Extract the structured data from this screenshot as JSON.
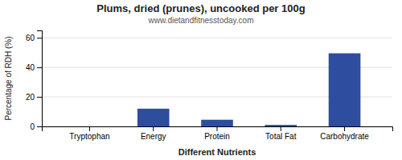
{
  "chart_data": {
    "type": "bar",
    "title": "Plums, dried (prunes), uncooked per 100g",
    "subtitle": "www.dietandfitnesstoday.com",
    "xlabel": "Different Nutrients",
    "ylabel": "Percentage of RDH (%)",
    "categories": [
      "Tryptophan",
      "Energy",
      "Protein",
      "Total Fat",
      "Carbohydrate"
    ],
    "values": [
      0.0,
      12.0,
      4.5,
      1.0,
      49.5
    ],
    "color": "#2e4d9e",
    "ylim": [
      0,
      65
    ],
    "yticks": [
      0,
      20,
      40,
      60
    ],
    "grid": true
  }
}
